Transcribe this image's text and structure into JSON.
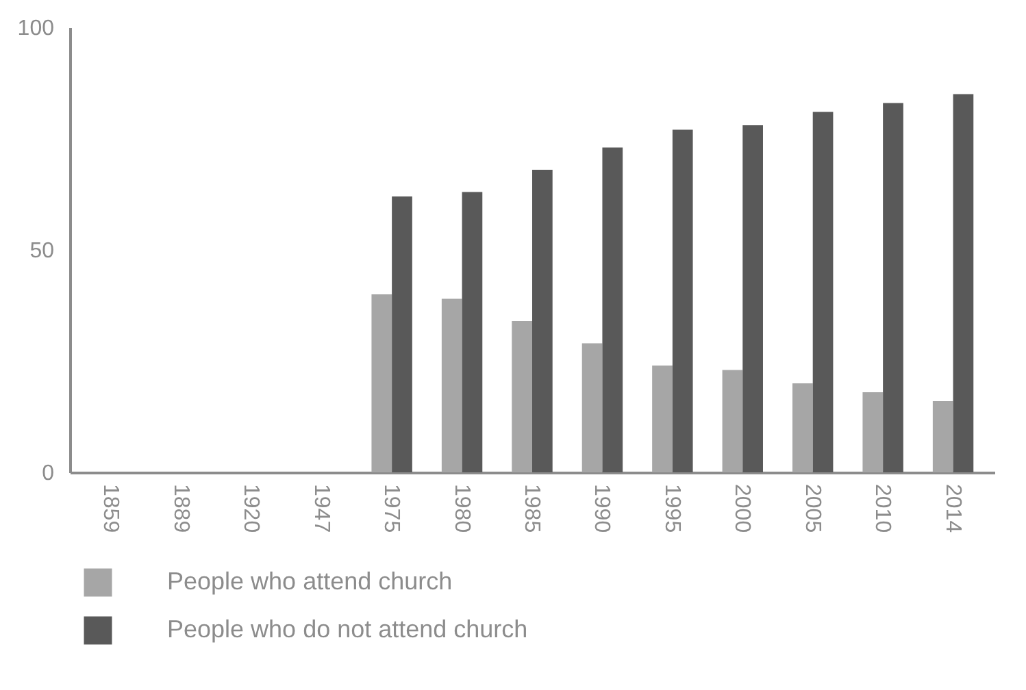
{
  "chart_data": {
    "type": "bar",
    "categories": [
      "1859",
      "1889",
      "1920",
      "1947",
      "1975",
      "1980",
      "1985",
      "1990",
      "1995",
      "2000",
      "2005",
      "2010",
      "2014"
    ],
    "series": [
      {
        "name": "People who attend church",
        "color": "#a6a6a6",
        "values": [
          null,
          null,
          null,
          null,
          40,
          39,
          34,
          29,
          24,
          23,
          20,
          18,
          16
        ]
      },
      {
        "name": "People who do not attend church",
        "color": "#595959",
        "values": [
          null,
          null,
          null,
          null,
          62,
          63,
          68,
          73,
          77,
          78,
          81,
          83,
          85
        ]
      }
    ],
    "ylim": [
      0,
      100
    ],
    "yticks": [
      0,
      50,
      100
    ],
    "grid": false,
    "legend": "bottom"
  }
}
